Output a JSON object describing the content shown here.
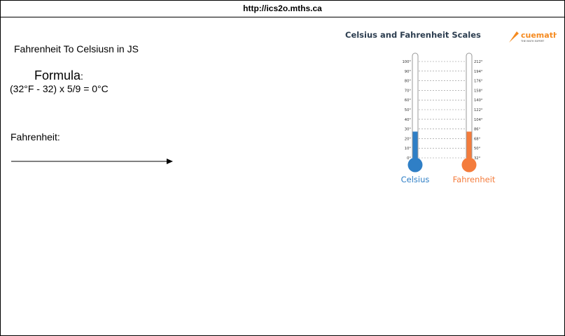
{
  "browser": {
    "url": "http://ics2o.mths.ca"
  },
  "app": {
    "title": "Fahrenheit To Celsiusn in JS",
    "formula_heading": "Formula",
    "formula_colon": ":",
    "formula_text": "(32°F - 32) x 5/9 = 0°C",
    "input_label": "Fahrenheit:"
  },
  "illustration": {
    "title": "Celsius and Fahrenheit Scales",
    "brand": "cuemath",
    "brand_tagline": "THE MATH EXPERT",
    "celsius_label": "Celsius",
    "fahrenheit_label": "Fahrenheit",
    "celsius_ticks": [
      "100°",
      "90°",
      "80°",
      "70°",
      "60°",
      "50°",
      "40°",
      "30°",
      "20°",
      "10°",
      "0°"
    ],
    "fahrenheit_ticks": [
      "212°",
      "194°",
      "176°",
      "158°",
      "140°",
      "122°",
      "104°",
      "86°",
      "68°",
      "50°",
      "32°"
    ],
    "fill_level_fraction": 0.2,
    "colors": {
      "celsius": "#2f7fc6",
      "fahrenheit": "#f47c3c",
      "brand": "#f58a1f",
      "title": "#2d3e50"
    }
  }
}
